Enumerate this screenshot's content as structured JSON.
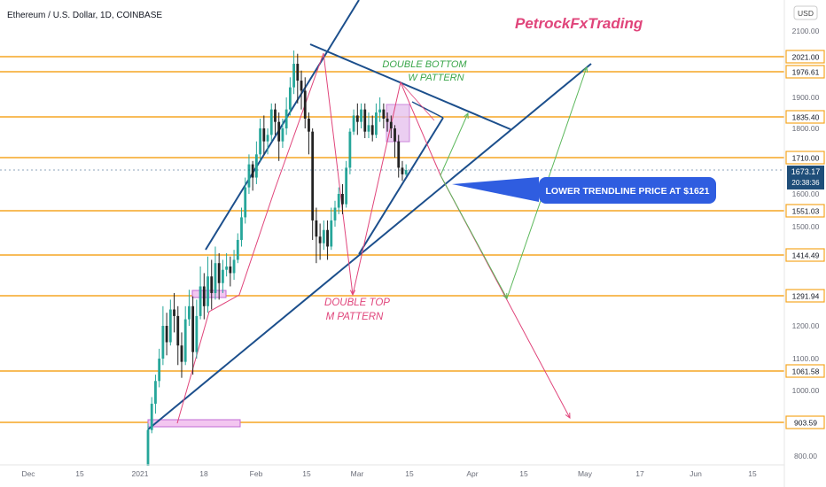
{
  "header": {
    "symbol": "Ethereum / U.S. Dollar, 1D, COINBASE",
    "brand": "PetrockFxTrading",
    "currency": "USD"
  },
  "colors": {
    "up": "#26a69a",
    "down": "#222222",
    "level": "#f5a623",
    "trend": "#1c4f8c",
    "green": "#5cb85c",
    "pink": "#e0457b",
    "brand": "#e0457b",
    "price_tag": "#1f4e79",
    "callout": "#2f5de0"
  },
  "chart_data": {
    "type": "candlestick",
    "title": "",
    "x_tick_labels": [
      "Dec",
      "15",
      "2021",
      "18",
      "Feb",
      "15",
      "Mar",
      "15",
      "Apr",
      "15",
      "May",
      "17",
      "Jun",
      "15"
    ],
    "y_tick_labels": [
      "2100.00",
      "1900.00",
      "1800.00",
      "1600.00",
      "1500.00",
      "1200.00",
      "1100.00",
      "1000.00",
      "800.00"
    ],
    "ylim": [
      780,
      2170
    ],
    "current_price": "1673.17",
    "countdown": "20:38:36",
    "horizontal_levels": [
      {
        "label": "2021.00",
        "value": 2021.0
      },
      {
        "label": "1976.61",
        "value": 1976.61
      },
      {
        "label": "1835.40",
        "value": 1835.4
      },
      {
        "label": "1710.00",
        "value": 1710.0
      },
      {
        "label": "1551.03",
        "value": 1551.03
      },
      {
        "label": "1414.49",
        "value": 1414.49
      },
      {
        "label": "1291.94",
        "value": 1291.94
      },
      {
        "label": "1061.58",
        "value": 1061.58
      },
      {
        "label": "903.59",
        "value": 903.59
      }
    ],
    "annotations": {
      "double_bottom": [
        "DOUBLE BOTTOM",
        "W PATTERN"
      ],
      "double_top": [
        "DOUBLE TOP",
        "M PATTERN"
      ],
      "callout": "LOWER TRENDLINE PRICE AT $1621"
    },
    "candles": [
      [
        0,
        770,
        880,
        740,
        900
      ],
      [
        1,
        880,
        960,
        870,
        980
      ],
      [
        2,
        960,
        1030,
        930,
        1050
      ],
      [
        3,
        1030,
        1100,
        1010,
        1130
      ],
      [
        4,
        1100,
        1200,
        1080,
        1260
      ],
      [
        5,
        1200,
        1150,
        1110,
        1240
      ],
      [
        6,
        1150,
        1250,
        1140,
        1280
      ],
      [
        7,
        1250,
        1230,
        1180,
        1300
      ],
      [
        8,
        1230,
        1140,
        1080,
        1260
      ],
      [
        9,
        1140,
        1090,
        1040,
        1180
      ],
      [
        10,
        1090,
        1220,
        1080,
        1260
      ],
      [
        11,
        1220,
        1260,
        1200,
        1310
      ],
      [
        12,
        1260,
        1120,
        1050,
        1290
      ],
      [
        13,
        1120,
        1230,
        1100,
        1280
      ],
      [
        14,
        1230,
        1320,
        1220,
        1380
      ],
      [
        15,
        1320,
        1260,
        1220,
        1360
      ],
      [
        16,
        1260,
        1350,
        1240,
        1410
      ],
      [
        17,
        1350,
        1300,
        1250,
        1400
      ],
      [
        18,
        1300,
        1390,
        1280,
        1440
      ],
      [
        19,
        1390,
        1330,
        1280,
        1420
      ],
      [
        20,
        1330,
        1370,
        1300,
        1400
      ],
      [
        21,
        1370,
        1380,
        1350,
        1420
      ],
      [
        22,
        1380,
        1360,
        1320,
        1410
      ],
      [
        23,
        1360,
        1400,
        1340,
        1430
      ],
      [
        24,
        1400,
        1460,
        1390,
        1480
      ],
      [
        25,
        1460,
        1530,
        1440,
        1560
      ],
      [
        26,
        1530,
        1620,
        1510,
        1650
      ],
      [
        27,
        1620,
        1690,
        1600,
        1720
      ],
      [
        28,
        1690,
        1650,
        1610,
        1700
      ],
      [
        29,
        1650,
        1720,
        1630,
        1760
      ],
      [
        30,
        1720,
        1800,
        1700,
        1830
      ],
      [
        31,
        1800,
        1760,
        1720,
        1840
      ],
      [
        32,
        1760,
        1780,
        1720,
        1800
      ],
      [
        33,
        1780,
        1860,
        1760,
        1880
      ],
      [
        34,
        1860,
        1820,
        1780,
        1880
      ],
      [
        35,
        1820,
        1760,
        1700,
        1850
      ],
      [
        36,
        1760,
        1800,
        1740,
        1830
      ],
      [
        37,
        1800,
        1860,
        1780,
        1900
      ],
      [
        38,
        1860,
        1930,
        1840,
        1960
      ],
      [
        39,
        1930,
        2000,
        1910,
        2040
      ],
      [
        40,
        2000,
        1950,
        1880,
        2030
      ],
      [
        41,
        1950,
        1920,
        1860,
        1980
      ],
      [
        42,
        1920,
        1830,
        1800,
        1960
      ],
      [
        43,
        1830,
        1790,
        1720,
        1850
      ],
      [
        44,
        1790,
        1520,
        1460,
        1800
      ],
      [
        45,
        1520,
        1470,
        1390,
        1560
      ],
      [
        46,
        1470,
        1450,
        1400,
        1510
      ],
      [
        47,
        1450,
        1490,
        1430,
        1520
      ],
      [
        48,
        1490,
        1440,
        1400,
        1520
      ],
      [
        49,
        1440,
        1520,
        1430,
        1560
      ],
      [
        50,
        1520,
        1560,
        1500,
        1580
      ],
      [
        51,
        1560,
        1600,
        1540,
        1620
      ],
      [
        52,
        1600,
        1570,
        1540,
        1630
      ],
      [
        53,
        1570,
        1680,
        1560,
        1700
      ],
      [
        54,
        1680,
        1790,
        1660,
        1800
      ],
      [
        55,
        1790,
        1840,
        1780,
        1860
      ],
      [
        56,
        1840,
        1820,
        1780,
        1880
      ],
      [
        57,
        1820,
        1860,
        1800,
        1880
      ],
      [
        58,
        1860,
        1790,
        1770,
        1880
      ],
      [
        59,
        1790,
        1810,
        1770,
        1850
      ],
      [
        60,
        1810,
        1780,
        1760,
        1840
      ],
      [
        61,
        1780,
        1850,
        1770,
        1880
      ],
      [
        62,
        1850,
        1860,
        1820,
        1900
      ],
      [
        63,
        1860,
        1830,
        1800,
        1880
      ],
      [
        64,
        1830,
        1820,
        1790,
        1850
      ],
      [
        65,
        1820,
        1800,
        1770,
        1840
      ],
      [
        66,
        1800,
        1760,
        1710,
        1810
      ],
      [
        67,
        1760,
        1680,
        1650,
        1780
      ],
      [
        68,
        1680,
        1660,
        1640,
        1700
      ],
      [
        69,
        1660,
        1673,
        1655,
        1690
      ]
    ]
  }
}
